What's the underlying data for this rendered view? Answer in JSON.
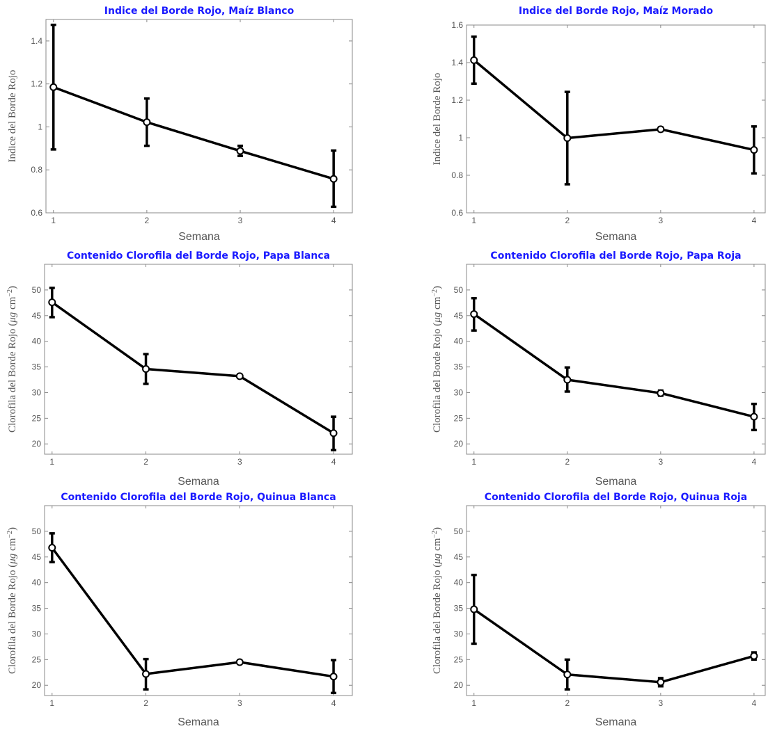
{
  "colors": {
    "title": "#1a1aff",
    "line": "#000000",
    "axis": "#888888",
    "text": "#555555"
  },
  "chart_data": [
    {
      "type": "line",
      "title": "Indice del Borde Rojo, Maíz Blanco",
      "xlabel": "Semana",
      "ylabel": "Indice del Borde Rojo",
      "x": [
        1,
        2,
        3,
        4
      ],
      "xticks": [
        "1",
        "2",
        "3",
        "4"
      ],
      "xlim": [
        0.92,
        4.2
      ],
      "ylim": [
        0.6,
        1.5
      ],
      "yticks": [
        0.6,
        0.8,
        1,
        1.2,
        1.4
      ],
      "ytick_labels": [
        "0.6",
        "0.8",
        "1",
        "1.2",
        "1.4"
      ],
      "values": [
        1.185,
        1.022,
        0.888,
        0.758
      ],
      "err_low": [
        0.895,
        0.912,
        0.865,
        0.628
      ],
      "err_high": [
        1.475,
        1.132,
        0.912,
        0.89
      ],
      "grid": false,
      "legend": "none"
    },
    {
      "type": "line",
      "title": "Indice del Borde Rojo, Maíz Morado",
      "xlabel": "Semana",
      "ylabel": "Indice del Borde Rojo",
      "x": [
        1,
        2,
        3,
        4
      ],
      "xticks": [
        "1",
        "2",
        "3",
        "4"
      ],
      "xlim": [
        0.92,
        4.12
      ],
      "ylim": [
        0.6,
        1.6
      ],
      "yticks": [
        0.6,
        0.8,
        1,
        1.2,
        1.4,
        1.6
      ],
      "ytick_labels": [
        "0.6",
        "0.8",
        "1",
        "1.2",
        "1.4",
        "1.6"
      ],
      "values": [
        1.413,
        0.998,
        1.045,
        0.935
      ],
      "err_low": [
        1.288,
        0.752,
        1.035,
        0.81
      ],
      "err_high": [
        1.538,
        1.244,
        1.055,
        1.06
      ],
      "grid": false,
      "legend": "none"
    },
    {
      "type": "line",
      "title": "Contenido Clorofila del Borde Rojo, Papa Blanca",
      "xlabel": "Semana",
      "ylabel_main": "Clorofila del Borde Rojo (",
      "ylabel_unit": "μg",
      "ylabel_cm": " cm",
      "ylabel_exp": "−2",
      "ylabel_close": ")",
      "x": [
        1,
        2,
        3,
        4
      ],
      "xticks": [
        "1",
        "2",
        "3",
        "4"
      ],
      "xlim": [
        0.92,
        4.2
      ],
      "ylim": [
        18,
        55
      ],
      "yticks": [
        20,
        25,
        30,
        35,
        40,
        45,
        50
      ],
      "ytick_labels": [
        "20",
        "25",
        "30",
        "35",
        "40",
        "45",
        "50"
      ],
      "values": [
        47.6,
        34.6,
        33.2,
        22.1
      ],
      "err_low": [
        44.7,
        31.7,
        32.9,
        18.8
      ],
      "err_high": [
        50.4,
        37.5,
        33.5,
        25.3
      ],
      "grid": false,
      "legend": "none"
    },
    {
      "type": "line",
      "title": "Contenido Clorofila del Borde Rojo, Papa Roja",
      "xlabel": "Semana",
      "ylabel_main": "Clorofila del Borde Rojo (",
      "ylabel_unit": "μg",
      "ylabel_cm": " cm",
      "ylabel_exp": "−2",
      "ylabel_close": ")",
      "x": [
        1,
        2,
        3,
        4
      ],
      "xticks": [
        "1",
        "2",
        "3",
        "4"
      ],
      "xlim": [
        0.92,
        4.12
      ],
      "ylim": [
        18,
        55
      ],
      "yticks": [
        20,
        25,
        30,
        35,
        40,
        45,
        50
      ],
      "ytick_labels": [
        "20",
        "25",
        "30",
        "35",
        "40",
        "45",
        "50"
      ],
      "values": [
        45.3,
        32.5,
        29.9,
        25.3
      ],
      "err_low": [
        42.1,
        30.2,
        29.4,
        22.7
      ],
      "err_high": [
        48.4,
        34.9,
        30.4,
        27.8
      ],
      "grid": false,
      "legend": "none"
    },
    {
      "type": "line",
      "title": "Contenido Clorofila del Borde Rojo, Quinua Blanca",
      "xlabel": "Semana",
      "ylabel_main": "Clorofila del Borde Rojo (",
      "ylabel_unit": "μg",
      "ylabel_cm": " cm",
      "ylabel_exp": "−2",
      "ylabel_close": ")",
      "x": [
        1,
        2,
        3,
        4
      ],
      "xticks": [
        "1",
        "2",
        "3",
        "4"
      ],
      "xlim": [
        0.92,
        4.2
      ],
      "ylim": [
        18,
        55
      ],
      "yticks": [
        20,
        25,
        30,
        35,
        40,
        45,
        50
      ],
      "ytick_labels": [
        "20",
        "25",
        "30",
        "35",
        "40",
        "45",
        "50"
      ],
      "values": [
        46.8,
        22.2,
        24.5,
        21.7
      ],
      "err_low": [
        44.0,
        19.2,
        24.2,
        18.5
      ],
      "err_high": [
        49.6,
        25.1,
        24.8,
        24.9
      ],
      "grid": false,
      "legend": "none"
    },
    {
      "type": "line",
      "title": "Contenido Clorofila del Borde Rojo, Quinua Roja",
      "xlabel": "Semana",
      "ylabel_main": "Clorofila del Borde Rojo (",
      "ylabel_unit": "μg",
      "ylabel_cm": " cm",
      "ylabel_exp": "−2",
      "ylabel_close": ")",
      "x": [
        1,
        2,
        3,
        4
      ],
      "xticks": [
        "1",
        "2",
        "3",
        "4"
      ],
      "xlim": [
        0.92,
        4.12
      ],
      "ylim": [
        18,
        55
      ],
      "yticks": [
        20,
        25,
        30,
        35,
        40,
        45,
        50
      ],
      "ytick_labels": [
        "20",
        "25",
        "30",
        "35",
        "40",
        "45",
        "50"
      ],
      "values": [
        34.8,
        22.1,
        20.6,
        25.7
      ],
      "err_low": [
        28.1,
        19.2,
        19.8,
        25.0
      ],
      "err_high": [
        41.5,
        25.0,
        21.4,
        26.4
      ],
      "grid": false,
      "legend": "none"
    }
  ]
}
